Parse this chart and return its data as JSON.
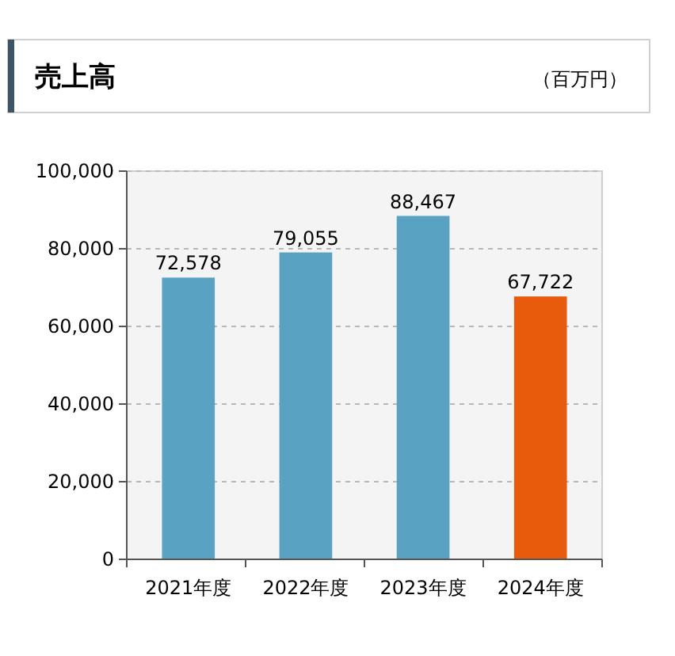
{
  "chart_data": {
    "type": "bar",
    "title": "売上高",
    "subtitle": "（百万円）",
    "categories": [
      "2021年度",
      "2022年度",
      "2023年度",
      "2024年度"
    ],
    "values": [
      72578,
      79055,
      88467,
      67722
    ],
    "value_labels": [
      "72,578",
      "79,055",
      "88,467",
      "67,722"
    ],
    "colors": [
      "#5aa2c2",
      "#5aa2c2",
      "#5aa2c2",
      "#e85a0c"
    ],
    "ylim": [
      0,
      100000
    ],
    "yticks": [
      0,
      {
        "value": 20000,
        "label": "20,000"
      },
      {
        "value": 40000,
        "label": "40,000"
      },
      {
        "value": 60000,
        "label": "60,000"
      },
      {
        "value": 80000,
        "label": "80,000"
      },
      {
        "value": 100000,
        "label": "100,000"
      }
    ],
    "grid": "y"
  }
}
